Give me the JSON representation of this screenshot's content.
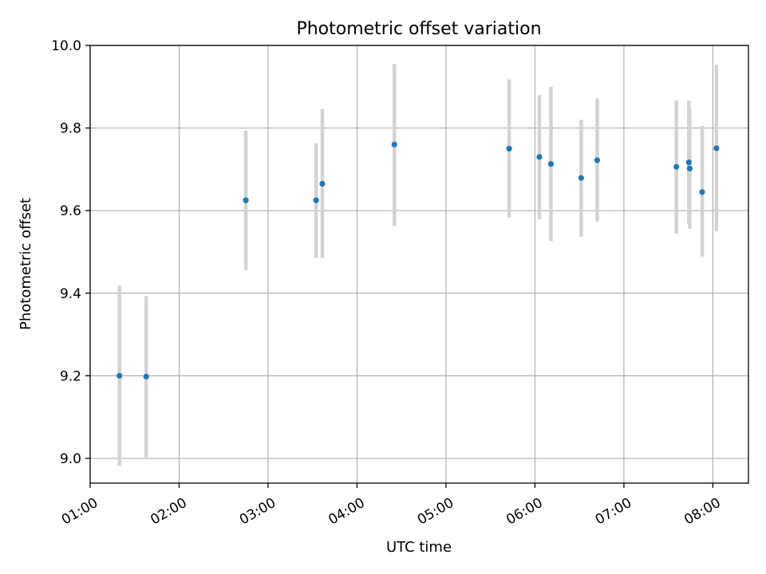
{
  "chart_data": {
    "type": "scatter",
    "title": "Photometric offset variation",
    "xlabel": "UTC time",
    "ylabel": "Photometric offset",
    "x_unit": "hours",
    "xlim": [
      1.0,
      8.4
    ],
    "ylim": [
      8.94,
      10.0
    ],
    "x_ticks": [
      {
        "value": 1,
        "label": "01:00"
      },
      {
        "value": 2,
        "label": "02:00"
      },
      {
        "value": 3,
        "label": "03:00"
      },
      {
        "value": 4,
        "label": "04:00"
      },
      {
        "value": 5,
        "label": "05:00"
      },
      {
        "value": 6,
        "label": "06:00"
      },
      {
        "value": 7,
        "label": "07:00"
      },
      {
        "value": 8,
        "label": "08:00"
      }
    ],
    "y_ticks": [
      {
        "value": 9.0,
        "label": "9.0"
      },
      {
        "value": 9.2,
        "label": "9.2"
      },
      {
        "value": 9.4,
        "label": "9.4"
      },
      {
        "value": 9.6,
        "label": "9.6"
      },
      {
        "value": 9.8,
        "label": "9.8"
      },
      {
        "value": 10.0,
        "label": "10.0"
      }
    ],
    "grid": true,
    "colors": {
      "point": "#1f77b4",
      "errorbar": "#d3d3d3"
    },
    "points": [
      {
        "x": 1.33,
        "y": 9.2,
        "ylo": 8.982,
        "yhi": 9.418
      },
      {
        "x": 1.63,
        "y": 9.198,
        "ylo": 9.003,
        "yhi": 9.393
      },
      {
        "x": 2.75,
        "y": 9.625,
        "ylo": 9.456,
        "yhi": 9.794
      },
      {
        "x": 3.54,
        "y": 9.625,
        "ylo": 9.485,
        "yhi": 9.763
      },
      {
        "x": 3.61,
        "y": 9.665,
        "ylo": 9.485,
        "yhi": 9.846
      },
      {
        "x": 4.42,
        "y": 9.76,
        "ylo": 9.563,
        "yhi": 9.955
      },
      {
        "x": 5.71,
        "y": 9.75,
        "ylo": 9.583,
        "yhi": 9.918
      },
      {
        "x": 6.05,
        "y": 9.73,
        "ylo": 9.579,
        "yhi": 9.88
      },
      {
        "x": 6.18,
        "y": 9.713,
        "ylo": 9.526,
        "yhi": 9.9
      },
      {
        "x": 6.52,
        "y": 9.679,
        "ylo": 9.537,
        "yhi": 9.82
      },
      {
        "x": 6.7,
        "y": 9.722,
        "ylo": 9.573,
        "yhi": 9.872
      },
      {
        "x": 7.59,
        "y": 9.706,
        "ylo": 9.544,
        "yhi": 9.867
      },
      {
        "x": 7.73,
        "y": 9.717,
        "ylo": 9.568,
        "yhi": 9.866
      },
      {
        "x": 7.74,
        "y": 9.702,
        "ylo": 9.556,
        "yhi": 9.848
      },
      {
        "x": 7.88,
        "y": 9.645,
        "ylo": 9.488,
        "yhi": 9.805
      },
      {
        "x": 8.04,
        "y": 9.751,
        "ylo": 9.55,
        "yhi": 9.953
      }
    ]
  }
}
